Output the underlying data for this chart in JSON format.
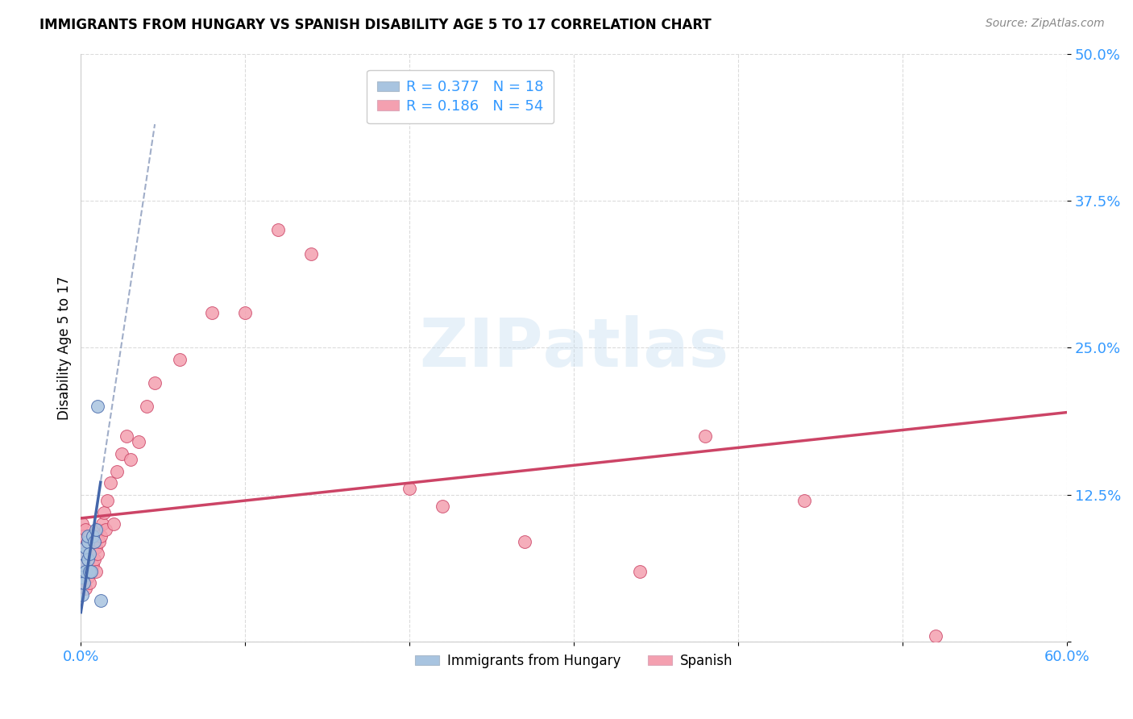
{
  "title": "IMMIGRANTS FROM HUNGARY VS SPANISH DISABILITY AGE 5 TO 17 CORRELATION CHART",
  "source": "Source: ZipAtlas.com",
  "ylabel": "Disability Age 5 to 17",
  "xlim": [
    0.0,
    0.6
  ],
  "ylim": [
    0.0,
    0.5
  ],
  "xticks": [
    0.0,
    0.1,
    0.2,
    0.3,
    0.4,
    0.5,
    0.6
  ],
  "xticklabels": [
    "0.0%",
    "",
    "",
    "",
    "",
    "",
    "60.0%"
  ],
  "yticks": [
    0.0,
    0.125,
    0.25,
    0.375,
    0.5
  ],
  "yticklabels": [
    "",
    "12.5%",
    "25.0%",
    "37.5%",
    "50.0%"
  ],
  "legend_labels": [
    "Immigrants from Hungary",
    "Spanish"
  ],
  "R_hungary": 0.377,
  "N_hungary": 18,
  "R_spanish": 0.186,
  "N_spanish": 54,
  "color_hungary": "#a8c4e0",
  "color_spanish": "#f4a0b0",
  "trendline_hungary_color": "#4466aa",
  "trendline_spanish_color": "#cc4466",
  "hungary_x": [
    0.001,
    0.001,
    0.002,
    0.002,
    0.002,
    0.003,
    0.003,
    0.004,
    0.004,
    0.004,
    0.005,
    0.005,
    0.006,
    0.007,
    0.008,
    0.009,
    0.01,
    0.012
  ],
  "hungary_y": [
    0.04,
    0.055,
    0.05,
    0.065,
    0.075,
    0.06,
    0.08,
    0.07,
    0.085,
    0.09,
    0.06,
    0.075,
    0.06,
    0.09,
    0.085,
    0.095,
    0.2,
    0.035
  ],
  "spanish_x": [
    0.001,
    0.001,
    0.001,
    0.002,
    0.002,
    0.002,
    0.002,
    0.003,
    0.003,
    0.003,
    0.003,
    0.004,
    0.004,
    0.004,
    0.005,
    0.005,
    0.005,
    0.006,
    0.006,
    0.007,
    0.007,
    0.008,
    0.008,
    0.009,
    0.009,
    0.01,
    0.01,
    0.011,
    0.012,
    0.013,
    0.014,
    0.015,
    0.016,
    0.018,
    0.02,
    0.022,
    0.025,
    0.028,
    0.03,
    0.035,
    0.04,
    0.045,
    0.06,
    0.08,
    0.1,
    0.12,
    0.14,
    0.2,
    0.22,
    0.27,
    0.34,
    0.38,
    0.44,
    0.52
  ],
  "spanish_y": [
    0.06,
    0.08,
    0.1,
    0.05,
    0.06,
    0.075,
    0.09,
    0.045,
    0.065,
    0.08,
    0.095,
    0.055,
    0.07,
    0.085,
    0.05,
    0.075,
    0.09,
    0.06,
    0.085,
    0.065,
    0.09,
    0.07,
    0.085,
    0.06,
    0.08,
    0.075,
    0.095,
    0.085,
    0.09,
    0.1,
    0.11,
    0.095,
    0.12,
    0.135,
    0.1,
    0.145,
    0.16,
    0.175,
    0.155,
    0.17,
    0.2,
    0.22,
    0.24,
    0.28,
    0.28,
    0.35,
    0.33,
    0.13,
    0.115,
    0.085,
    0.06,
    0.175,
    0.12,
    0.005
  ],
  "hungary_trend_x": [
    0.0,
    0.045
  ],
  "hungary_trend_y_start": 0.025,
  "hungary_trend_y_end": 0.44,
  "spanish_trend_x": [
    0.0,
    0.6
  ],
  "spanish_trend_y_start": 0.105,
  "spanish_trend_y_end": 0.195
}
